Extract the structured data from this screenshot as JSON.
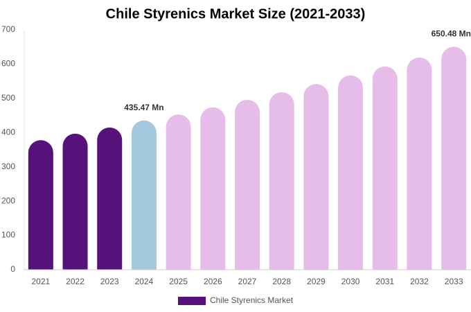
{
  "chart_data": {
    "type": "bar",
    "title": "Chile Styrenics Market Size (2021-2033)",
    "categories": [
      "2021",
      "2022",
      "2023",
      "2024",
      "2025",
      "2026",
      "2027",
      "2028",
      "2029",
      "2030",
      "2031",
      "2032",
      "2033"
    ],
    "series": [
      {
        "name": "Chile Styrenics Market",
        "color": "#56117a",
        "values": [
          378,
          397,
          415,
          435.47,
          453,
          474,
          496,
          518,
          542,
          567,
          593,
          619,
          650.48
        ],
        "value_labels": [
          null,
          null,
          null,
          "435.47 Mn",
          null,
          null,
          null,
          null,
          null,
          null,
          null,
          null,
          "650.48 Mn"
        ],
        "colors": [
          "#56117a",
          "#56117a",
          "#56117a",
          "#a3c9de",
          "#e6bde8",
          "#e6bde8",
          "#e6bde8",
          "#e6bde8",
          "#e6bde8",
          "#e6bde8",
          "#e6bde8",
          "#e6bde8",
          "#e6bde8"
        ]
      }
    ],
    "ylim": [
      0,
      700
    ],
    "yticks": [
      0,
      100,
      200,
      300,
      400,
      500,
      600,
      700
    ],
    "grid": false,
    "legend": "bottom"
  }
}
